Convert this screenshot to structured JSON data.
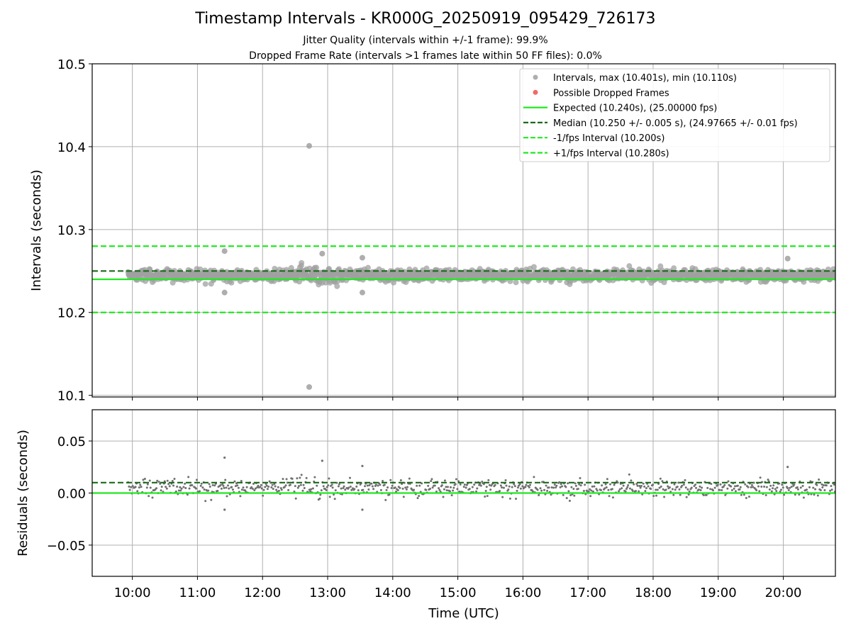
{
  "chart_data": [
    {
      "type": "scatter",
      "title": "Timestamp Intervals - KR000G_20250919_095429_726173",
      "subtitle_lines": [
        "Jitter Quality (intervals within +/-1 frame): 99.9%",
        "Dropped Frame Rate (intervals >1 frames late within 50 FF files): 0.0%"
      ],
      "ylabel": "Intervals (seconds)",
      "xlabel": "",
      "ylim": [
        10.098,
        10.5
      ],
      "yticks": [
        "10.1",
        "10.2",
        "10.3",
        "10.4",
        "10.5"
      ],
      "xlim_hours": [
        9.383,
        20.8
      ],
      "grid": true,
      "legend_position": "top-right",
      "legend": [
        {
          "label": "Intervals, max (10.401s), min (10.110s)",
          "kind": "point",
          "color": "#a0a0a0"
        },
        {
          "label": "Possible Dropped Frames",
          "kind": "point",
          "color": "#f06a6a"
        },
        {
          "label": "Expected (10.240s), (25.00000 fps)",
          "kind": "solid",
          "color": "#22e822"
        },
        {
          "label": "Median (10.250 +/- 0.005 s), (24.97665 +/- 0.01 fps)",
          "kind": "dashed",
          "color": "#1a6b1a"
        },
        {
          "label": "-1/fps Interval (10.200s)",
          "kind": "dashed",
          "color": "#22e822"
        },
        {
          "label": "+1/fps Interval (10.280s)",
          "kind": "dashed",
          "color": "#22e822"
        }
      ],
      "reference_lines": {
        "expected": 10.24,
        "median": 10.25,
        "minus_one": 10.2,
        "plus_one": 10.28
      },
      "series": [
        {
          "values_summary": {
            "start": "09:56",
            "end": "20:48",
            "typical": 10.245,
            "spread": 0.008
          }
        },
        {
          "outliers": [
            {
              "x": "12:43",
              "y": 10.401
            },
            {
              "x": "12:43",
              "y": 10.11
            },
            {
              "x": "11:25",
              "y": 10.274
            },
            {
              "x": "11:25",
              "y": 10.224
            },
            {
              "x": "12:55",
              "y": 10.271
            },
            {
              "x": "13:32",
              "y": 10.266
            },
            {
              "x": "13:32",
              "y": 10.224
            },
            {
              "x": "20:04",
              "y": 10.265
            }
          ]
        }
      ]
    },
    {
      "type": "scatter",
      "ylabel": "Residuals (seconds)",
      "xlabel": "Time (UTC)",
      "ylim": [
        -0.08,
        0.08
      ],
      "yticks": [
        "−0.05",
        "0.00",
        "0.05"
      ],
      "xticks": [
        "10:00",
        "11:00",
        "12:00",
        "13:00",
        "14:00",
        "15:00",
        "16:00",
        "17:00",
        "18:00",
        "19:00",
        "20:00"
      ],
      "grid": true,
      "reference_lines": {
        "zero": 0.0,
        "median_offset": 0.01
      },
      "outliers": [
        {
          "x": "11:25",
          "y": 0.034
        },
        {
          "x": "11:25",
          "y": -0.016
        },
        {
          "x": "12:55",
          "y": 0.031
        },
        {
          "x": "13:32",
          "y": 0.026
        },
        {
          "x": "13:32",
          "y": -0.016
        },
        {
          "x": "20:04",
          "y": 0.025
        }
      ]
    }
  ],
  "colors": {
    "points": "#a0a0a0",
    "residual_points": "#707070",
    "expected": "#22e822",
    "median": "#1a6b1a",
    "grid": "#b0b0b0"
  }
}
